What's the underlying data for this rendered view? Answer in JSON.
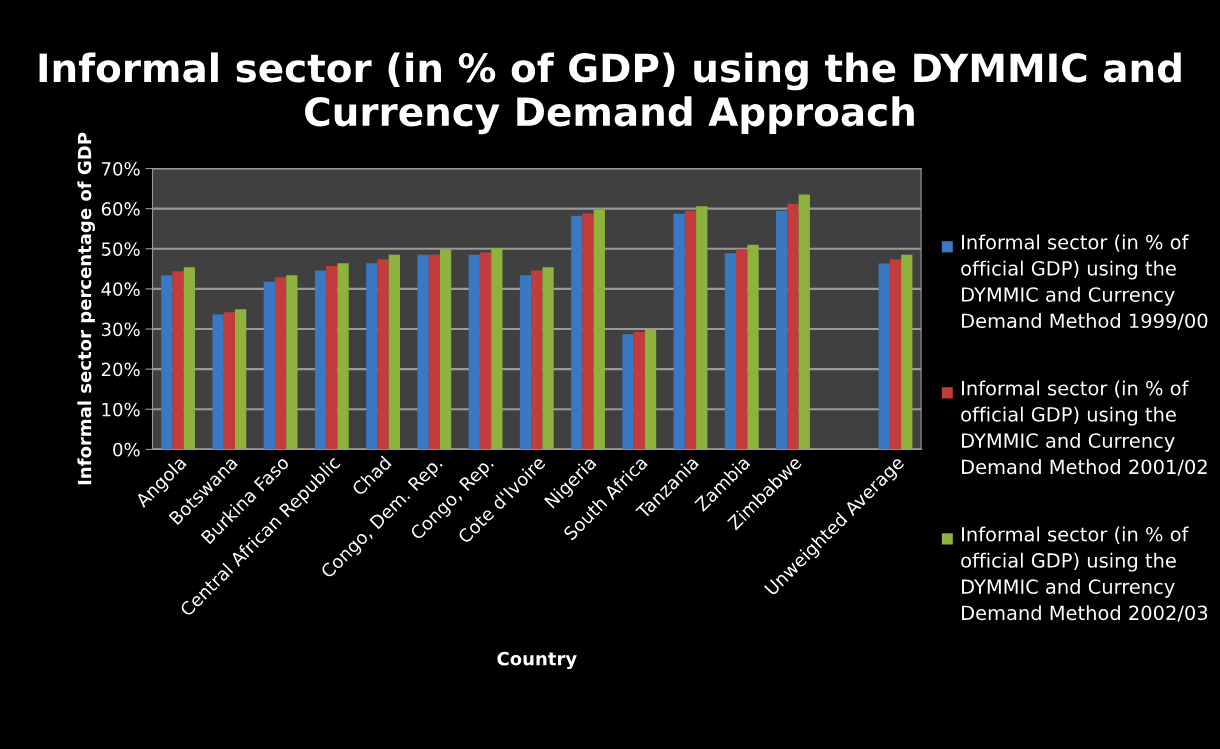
{
  "chart_data": {
    "type": "bar",
    "title": "Informal sector (in % of GDP) using the DYMMIC and Currency Demand Approach",
    "xlabel": "Country",
    "ylabel": "Informal sector percentage of GDP",
    "categories": [
      "Angola",
      "Botswana",
      "Burkina Faso",
      "Central African Republic",
      "Chad",
      "Congo, Dem. Rep.",
      "Congo, Rep.",
      "Cote d'Ivoire",
      "Nigeria",
      "South Africa",
      "Tanzania",
      "Zambia",
      "Zimbabwe",
      null,
      "Unweighted Average"
    ],
    "series": [
      {
        "name": "Informal sector (in % of official GDP) using the DYMMIC and Currency Demand Method 1999/00",
        "color": "#3a78c4",
        "values": [
          43.4,
          33.6,
          41.8,
          44.6,
          46.4,
          48.5,
          48.5,
          43.4,
          58.2,
          28.7,
          58.7,
          48.9,
          59.5,
          null,
          46.3
        ]
      },
      {
        "name": "Informal sector (in % of official GDP) using the DYMMIC and Currency Demand Method 2001/02",
        "color": "#c33c3c",
        "values": [
          44.4,
          34.2,
          42.9,
          45.7,
          47.4,
          48.5,
          49.1,
          44.6,
          58.8,
          29.3,
          59.5,
          49.9,
          61.2,
          null,
          47.4
        ]
      },
      {
        "name": "Informal sector (in % of official GDP) using the DYMMIC and Currency Demand Method 2002/03",
        "color": "#8db33c",
        "values": [
          45.4,
          34.9,
          43.4,
          46.4,
          48.5,
          49.9,
          50.2,
          45.4,
          59.7,
          29.8,
          60.6,
          51.0,
          63.5,
          null,
          48.5
        ]
      }
    ],
    "ylim": [
      0,
      70
    ],
    "yticks": [
      {
        "value": 0,
        "label": "0%"
      },
      {
        "value": 10,
        "label": "10%"
      },
      {
        "value": 20,
        "label": "20%"
      },
      {
        "value": 30,
        "label": "30%"
      },
      {
        "value": 40,
        "label": "40%"
      },
      {
        "value": 50,
        "label": "50%"
      },
      {
        "value": 60,
        "label": "60%"
      },
      {
        "value": 70,
        "label": "70%"
      }
    ],
    "grid": "y",
    "legend": "right"
  }
}
